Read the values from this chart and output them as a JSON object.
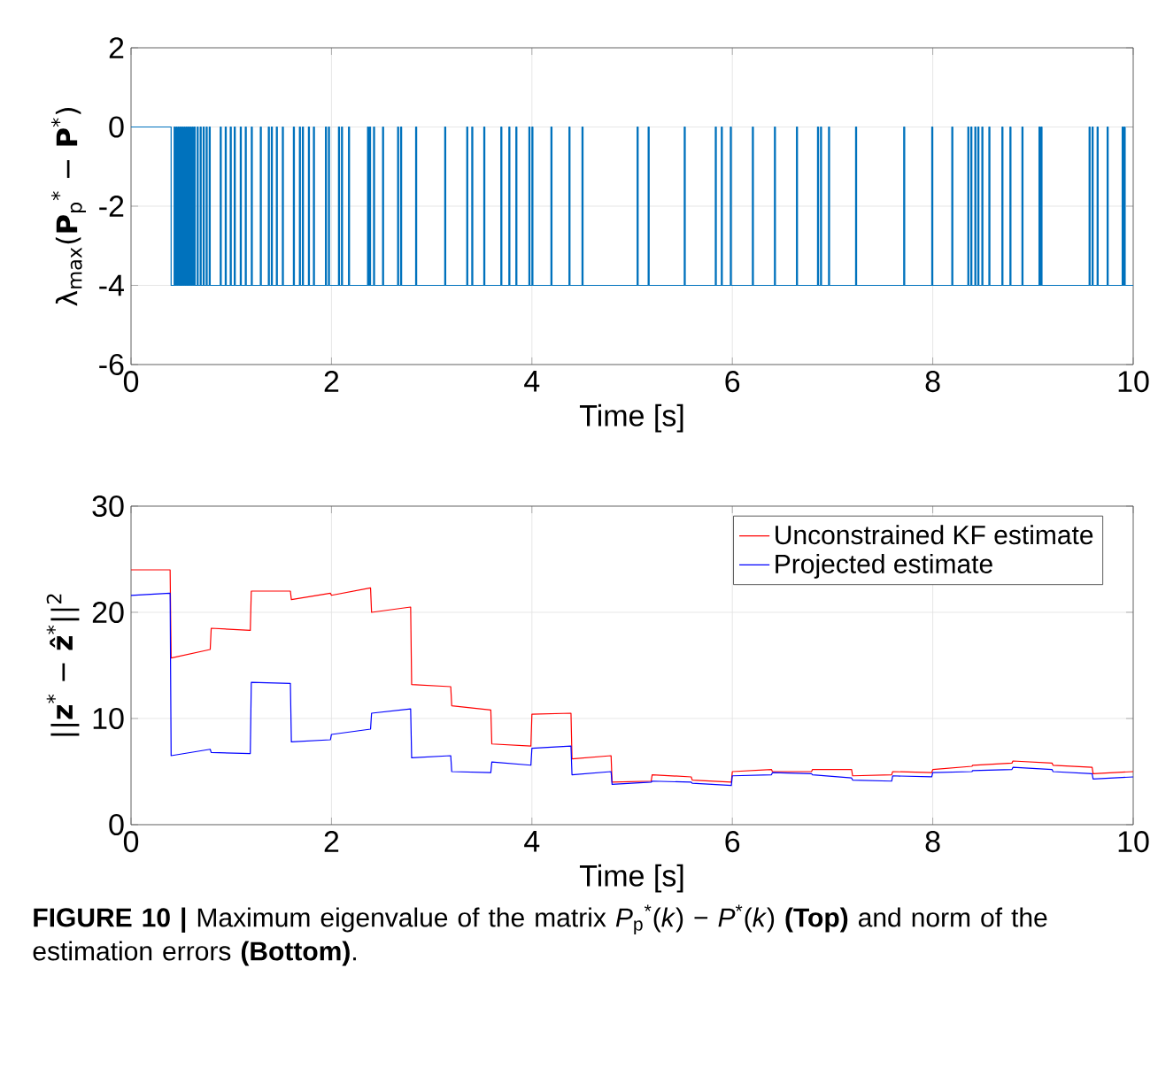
{
  "chart_data": [
    {
      "type": "step",
      "ylabel": "λ$_{max}$(**P**$_{p}$$^{*}$ − **P**$^{*}$)",
      "xlabel": "Time [s]",
      "xlim": [
        0,
        10
      ],
      "ylim": [
        -6,
        2
      ],
      "xticks": [
        0,
        2,
        4,
        6,
        8,
        10
      ],
      "yticks": [
        -6,
        -4,
        -2,
        0,
        2
      ],
      "grid": true,
      "series": [
        {
          "color": "#0072bd",
          "x": [
            0,
            0.4,
            0.43,
            0.44,
            0.45,
            0.46,
            0.47,
            0.48,
            0.49,
            0.5,
            0.51,
            0.52,
            0.53,
            0.54,
            0.55,
            0.56,
            0.57,
            0.58,
            0.59,
            0.6,
            0.61,
            0.62,
            0.63,
            0.64,
            0.66,
            0.67,
            0.69,
            0.7,
            0.72,
            0.73,
            0.75,
            0.76,
            0.78,
            0.79,
            0.89,
            0.9,
            0.94,
            0.95,
            0.99,
            1,
            1.03,
            1.04,
            1.09,
            1.1,
            1.14,
            1.15,
            1.2,
            1.21,
            1.29,
            1.3,
            1.37,
            1.38,
            1.4,
            1.41,
            1.45,
            1.46,
            1.51,
            1.52,
            1.62,
            1.63,
            1.68,
            1.69,
            1.71,
            1.72,
            1.77,
            1.78,
            1.82,
            1.83,
            1.94,
            1.95,
            1.97,
            1.98,
            2.07,
            2.08,
            2.1,
            2.11,
            2.17,
            2.18,
            2.36,
            2.37,
            2.38,
            2.39,
            2.42,
            2.43,
            2.51,
            2.52,
            2.66,
            2.67,
            2.69,
            2.7,
            2.84,
            2.85,
            3.13,
            3.14,
            3.35,
            3.36,
            3.4,
            3.41,
            3.52,
            3.53,
            3.69,
            3.7,
            3.77,
            3.78,
            3.84,
            3.85,
            3.97,
            3.98,
            4,
            4.01,
            4.19,
            4.2,
            4.37,
            4.38,
            4.5,
            4.51,
            5.05,
            5.06,
            5.16,
            5.17,
            5.52,
            5.53,
            5.83,
            5.84,
            5.89,
            5.9,
            5.98,
            5.99,
            6.2,
            6.21,
            6.42,
            6.43,
            6.64,
            6.65,
            6.85,
            6.86,
            6.88,
            6.89,
            6.96,
            6.97,
            7.23,
            7.24,
            7.71,
            7.72,
            7.99,
            8,
            8.19,
            8.2,
            8.35,
            8.36,
            8.38,
            8.39,
            8.42,
            8.43,
            8.45,
            8.46,
            8.49,
            8.5,
            8.56,
            8.57,
            8.69,
            8.7,
            8.77,
            8.78,
            8.89,
            8.9,
            9.06,
            9.07,
            9.08,
            9.09,
            9.56,
            9.57,
            9.59,
            9.6,
            9.64,
            9.65,
            9.74,
            9.75,
            9.89,
            9.9,
            9.91,
            9.92,
            10
          ],
          "values": [
            0,
            -4,
            0,
            -4,
            0,
            -4,
            0,
            -4,
            0,
            -4,
            0,
            -4,
            0,
            -4,
            0,
            -4,
            0,
            -4,
            0,
            -4,
            0,
            -4,
            0,
            -4,
            0,
            -4,
            0,
            -4,
            0,
            -4,
            0,
            -4,
            0,
            -4,
            0,
            -4,
            0,
            -4,
            0,
            -4,
            0,
            -4,
            0,
            -4,
            0,
            -4,
            0,
            -4,
            0,
            -4,
            0,
            -4,
            0,
            -4,
            0,
            -4,
            0,
            -4,
            0,
            -4,
            0,
            -4,
            0,
            -4,
            0,
            -4,
            0,
            -4,
            0,
            -4,
            0,
            -4,
            0,
            -4,
            0,
            -4,
            0,
            -4,
            0,
            -4,
            0,
            -4,
            0,
            -4,
            0,
            -4,
            0,
            -4,
            0,
            -4,
            0,
            -4,
            0,
            -4,
            0,
            -4,
            0,
            -4,
            0,
            -4,
            0,
            -4,
            0,
            -4,
            0,
            -4,
            0,
            -4,
            0,
            -4,
            0,
            -4,
            0,
            -4,
            0,
            -4,
            0,
            -4,
            0,
            -4,
            0,
            -4,
            0,
            -4,
            0,
            -4,
            0,
            -4,
            0,
            -4,
            0,
            -4,
            0,
            -4,
            0,
            -4,
            0,
            -4,
            0,
            -4,
            0,
            -4,
            0,
            -4,
            0,
            -4,
            0,
            -4,
            0,
            -4,
            0,
            -4,
            0,
            -4,
            0,
            -4,
            0,
            -4,
            0,
            -4,
            0,
            -4,
            0,
            -4,
            0,
            -4,
            0,
            -4,
            0,
            -4,
            0,
            -4,
            0,
            -4,
            0,
            -4,
            0,
            -4,
            0,
            -4,
            0,
            -4,
            -4
          ]
        }
      ]
    },
    {
      "type": "line",
      "ylabel": "||**z**$^{*}$ − **ẑ**$^{*}$||$^{2}$",
      "xlabel": "Time [s]",
      "xlim": [
        0,
        10
      ],
      "ylim": [
        0,
        30
      ],
      "xticks": [
        0,
        2,
        4,
        6,
        8,
        10
      ],
      "yticks": [
        0,
        10,
        20,
        30
      ],
      "grid": true,
      "legend": "top right",
      "x": [
        0,
        0.39,
        0.4,
        0.79,
        0.8,
        1.19,
        1.2,
        1.59,
        1.6,
        1.99,
        2,
        2.39,
        2.4,
        2.79,
        2.8,
        3.19,
        3.2,
        3.59,
        3.6,
        3.99,
        4,
        4.39,
        4.4,
        4.79,
        4.8,
        5.19,
        5.2,
        5.59,
        5.6,
        5.99,
        6,
        6.39,
        6.4,
        6.79,
        6.8,
        7.19,
        7.2,
        7.59,
        7.6,
        7.99,
        8,
        8.39,
        8.4,
        8.79,
        8.8,
        9.19,
        9.2,
        9.59,
        9.6,
        10
      ],
      "series": [
        {
          "name": "Unconstrained KF estimate",
          "color": "#ff0000",
          "values": [
            24.0,
            24.0,
            15.7,
            16.5,
            18.5,
            18.3,
            22.0,
            22.0,
            21.2,
            21.8,
            21.6,
            22.3,
            20.0,
            20.5,
            13.2,
            13.0,
            11.2,
            10.8,
            7.6,
            7.4,
            10.4,
            10.5,
            6.2,
            6.5,
            4.0,
            4.1,
            4.7,
            4.5,
            4.2,
            4.0,
            5.0,
            5.2,
            5.0,
            5.0,
            5.2,
            5.2,
            4.6,
            4.7,
            5.0,
            4.9,
            5.2,
            5.5,
            5.6,
            5.8,
            6.0,
            5.8,
            5.6,
            5.4,
            4.8,
            5.0
          ]
        },
        {
          "name": "Projected estimate",
          "color": "#0000ff",
          "values": [
            21.6,
            21.8,
            6.5,
            7.1,
            6.8,
            6.7,
            13.4,
            13.3,
            7.8,
            8.0,
            8.5,
            9.0,
            10.5,
            10.9,
            6.3,
            6.5,
            5.0,
            4.9,
            5.9,
            5.6,
            7.2,
            7.4,
            4.7,
            5.0,
            3.8,
            4.0,
            4.1,
            4.0,
            3.9,
            3.7,
            4.6,
            4.7,
            4.9,
            4.8,
            4.7,
            4.4,
            4.2,
            4.1,
            4.6,
            4.5,
            4.9,
            5.0,
            5.1,
            5.2,
            5.4,
            5.2,
            5.0,
            4.8,
            4.3,
            4.5
          ]
        }
      ],
      "annotations": [
        "**FIGURE 10 |** Maximum eigenvalue of the matrix *P*$_{p}$$^{*}$(*k*) − *P*$^{*}$(*k*) **(Top)** and norm of the estimation errors **(Bottom)**."
      ]
    }
  ]
}
